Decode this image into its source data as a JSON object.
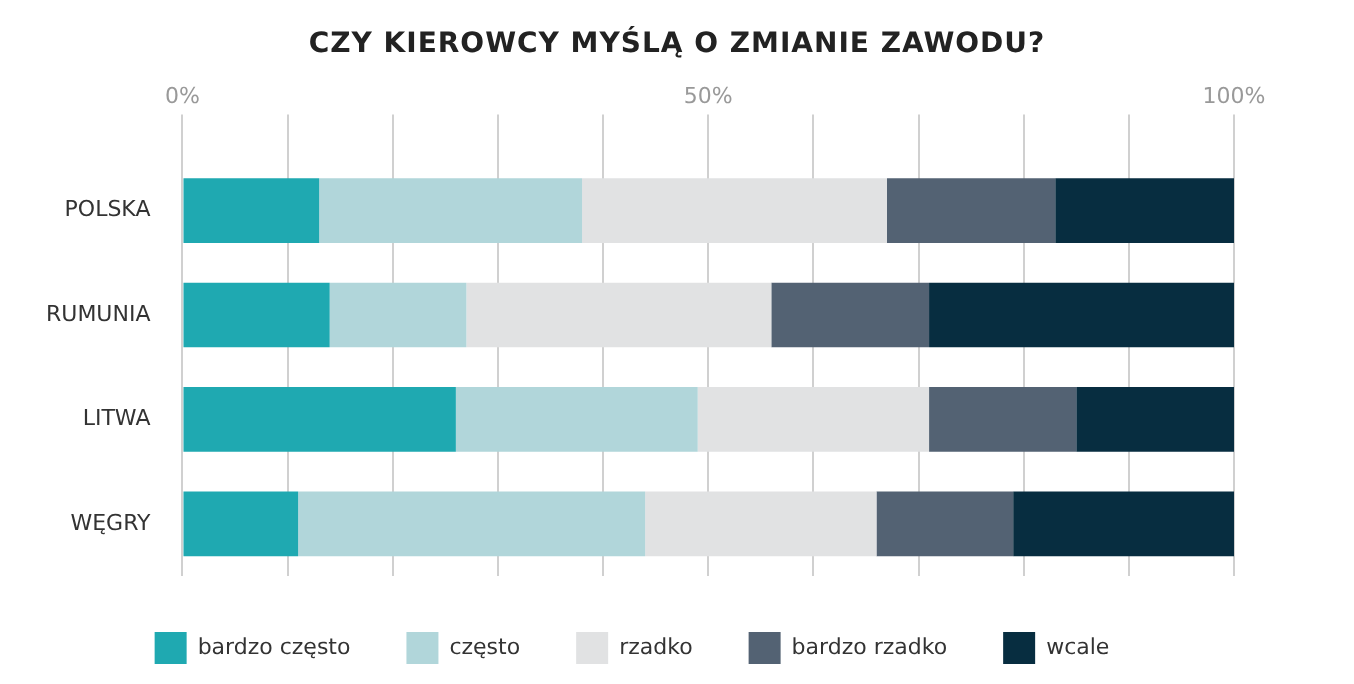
{
  "chart_data": {
    "type": "bar",
    "title": "CZY KIEROWCY MYŚLĄ O ZMIANIE ZAWODU?",
    "orientation": "horizontal",
    "stacked": true,
    "categories": [
      "POLSKA",
      "RUMUNIA",
      "LITWA",
      "WĘGRY"
    ],
    "series": [
      {
        "name": "bardzo często",
        "color": "#1fa9b1",
        "values": [
          13,
          14,
          26,
          11
        ]
      },
      {
        "name": "często",
        "color": "#b1d6da",
        "values": [
          25,
          13,
          23,
          33
        ]
      },
      {
        "name": "rzadko",
        "color": "#e1e2e3",
        "values": [
          29,
          29,
          22,
          22
        ]
      },
      {
        "name": "bardzo rzadko",
        "color": "#536273",
        "values": [
          16,
          15,
          14,
          13
        ]
      },
      {
        "name": "wcale",
        "color": "#072d40",
        "values": [
          17,
          29,
          15,
          21
        ]
      }
    ],
    "xlim": [
      0,
      100
    ],
    "xticks": [
      {
        "value": 0,
        "label": "0%"
      },
      {
        "value": 10,
        "label": null
      },
      {
        "value": 20,
        "label": null
      },
      {
        "value": 30,
        "label": null
      },
      {
        "value": 40,
        "label": null
      },
      {
        "value": 50,
        "label": "50%"
      },
      {
        "value": 60,
        "label": null
      },
      {
        "value": 70,
        "label": null
      },
      {
        "value": 80,
        "label": null
      },
      {
        "value": 90,
        "label": null
      },
      {
        "value": 100,
        "label": "100%"
      }
    ],
    "grid": "x",
    "legend": "bottom"
  }
}
